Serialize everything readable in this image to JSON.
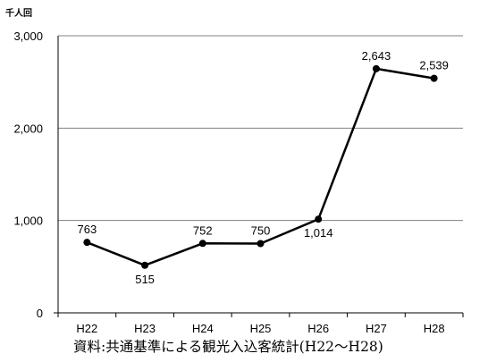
{
  "chart_data": {
    "type": "line",
    "unit_label": "千人回",
    "categories": [
      "H22",
      "H23",
      "H24",
      "H25",
      "H26",
      "H27",
      "H28"
    ],
    "series": [
      {
        "values": [
          763,
          515,
          752,
          750,
          1014,
          2643,
          2539
        ]
      }
    ],
    "data_labels": [
      "763",
      "515",
      "752",
      "750",
      "1,014",
      "2,643",
      "2,539"
    ],
    "ylim": [
      0,
      3000
    ],
    "yticks": [
      0,
      1000,
      2000,
      3000
    ],
    "ytick_labels": [
      "0",
      "1,000",
      "2,000",
      "3,000"
    ],
    "grid": true,
    "line_color": "#000000",
    "grid_color": "#808080"
  },
  "caption": "資料:共通基準による観光入込客統計(H22〜H28)"
}
